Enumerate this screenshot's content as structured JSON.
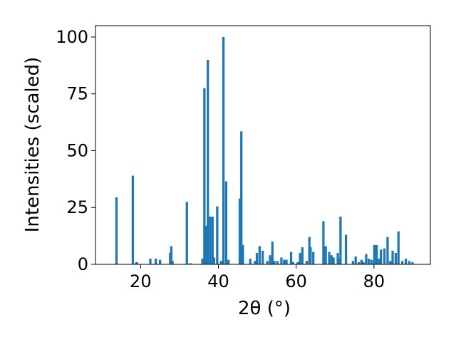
{
  "chart_data": {
    "type": "bar",
    "title": "",
    "xlabel": "2θ (°)",
    "ylabel": "Intensities (scaled)",
    "xlim": [
      8.4,
      94.5
    ],
    "ylim": [
      0,
      105
    ],
    "xticks": [
      20,
      40,
      60,
      80
    ],
    "yticks": [
      0,
      25,
      50,
      75,
      100
    ],
    "grid": false,
    "bar_color": "#1f77b4",
    "bar_width_deg": 0.6,
    "x": [
      13.8,
      18.0,
      18.9,
      19.1,
      22.5,
      23.9,
      25.0,
      27.6,
      27.9,
      28.2,
      31.9,
      32.8,
      35.9,
      36.4,
      36.8,
      37.3,
      37.9,
      38.5,
      38.9,
      39.7,
      40.7,
      41.3,
      42.0,
      42.6,
      45.5,
      45.9,
      46.3,
      48.2,
      49.4,
      49.9,
      50.6,
      51.4,
      52.6,
      53.3,
      53.9,
      54.4,
      55.2,
      56.2,
      56.9,
      57.5,
      58.7,
      59.2,
      60.4,
      61.0,
      61.6,
      62.7,
      63.4,
      63.7,
      64.4,
      67.0,
      67.6,
      68.5,
      69.1,
      69.6,
      70.7,
      71.0,
      71.4,
      72.8,
      74.6,
      75.3,
      76.1,
      76.8,
      77.3,
      78.0,
      78.7,
      79.4,
      80.1,
      80.7,
      81.3,
      81.8,
      82.7,
      83.5,
      84.2,
      84.8,
      85.6,
      86.3,
      87.3,
      88.2,
      89.1,
      89.9
    ],
    "values": [
      29.5,
      39.0,
      1.0,
      0.8,
      2.5,
      2.5,
      2.0,
      5.0,
      8.0,
      1.5,
      27.5,
      0.5,
      2.5,
      77.5,
      17.0,
      90.0,
      21.0,
      21.0,
      3.0,
      25.5,
      1.5,
      100.0,
      36.5,
      2.0,
      29.0,
      58.5,
      8.5,
      2.5,
      1.5,
      5.0,
      8.0,
      6.0,
      1.5,
      4.0,
      10.0,
      1.5,
      1.5,
      3.0,
      2.0,
      2.0,
      5.5,
      1.0,
      1.0,
      5.0,
      7.5,
      1.5,
      12.0,
      7.5,
      5.5,
      19.0,
      8.0,
      5.5,
      4.0,
      3.0,
      5.0,
      2.5,
      21.0,
      13.0,
      1.5,
      3.5,
      1.0,
      2.0,
      1.0,
      4.5,
      2.5,
      2.0,
      8.5,
      8.5,
      2.5,
      6.5,
      7.0,
      12.0,
      1.5,
      6.0,
      5.0,
      14.5,
      1.5,
      2.5,
      1.5,
      1.0
    ]
  }
}
